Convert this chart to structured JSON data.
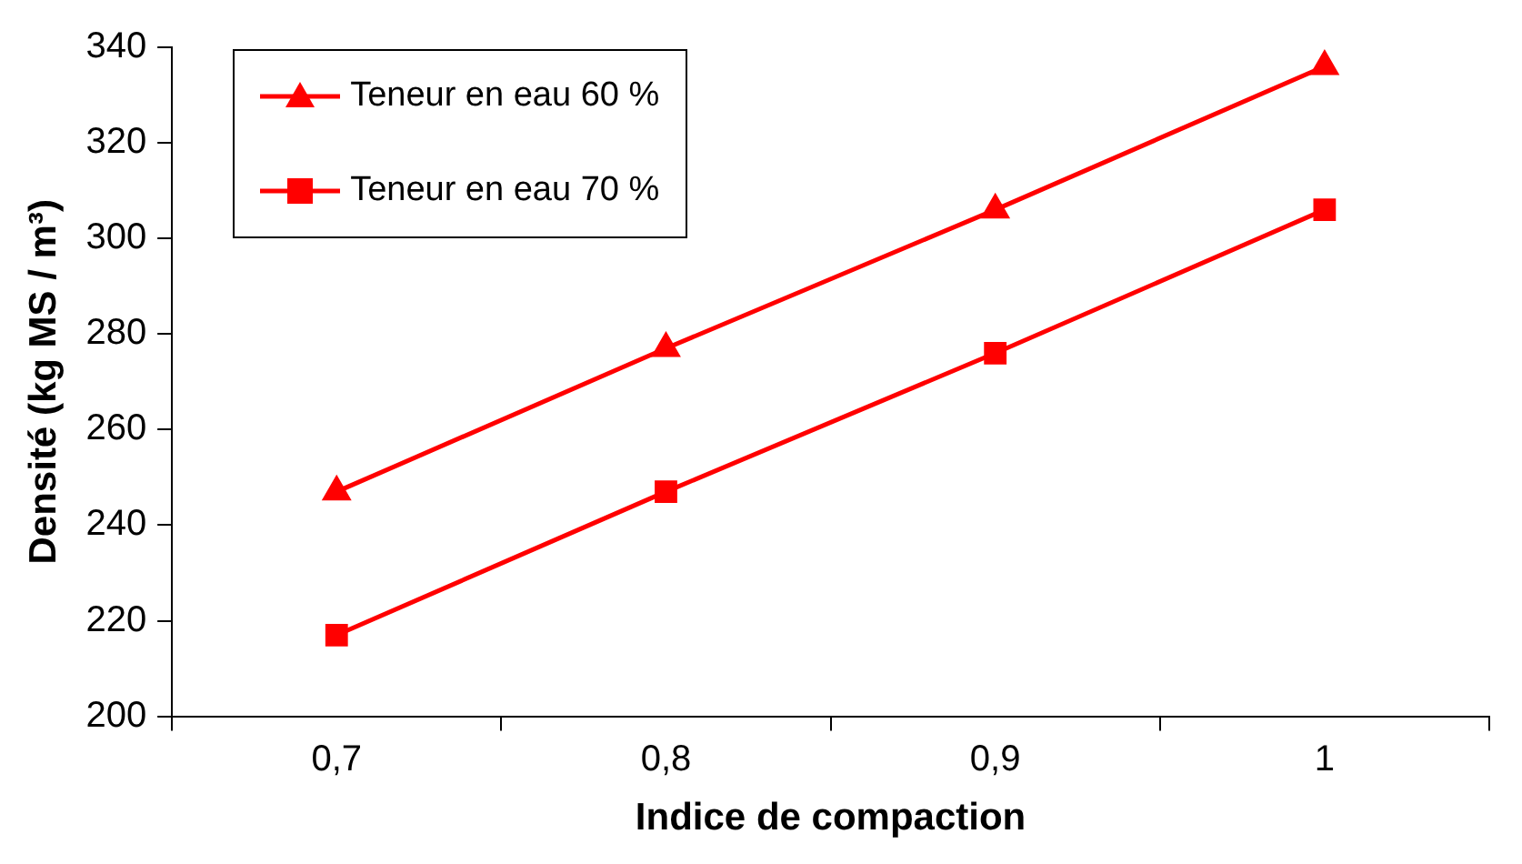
{
  "chart_data": {
    "type": "line",
    "xlabel": "Indice de compaction",
    "ylabel": "Densité (kg MS / m³)",
    "categories": [
      "0,7",
      "0,8",
      "0,9",
      "1"
    ],
    "series": [
      {
        "name": "Teneur en eau 60 %",
        "color": "#ff0000",
        "marker": "triangle",
        "values": [
          247,
          277,
          306,
          336
        ]
      },
      {
        "name": "Teneur en eau 70 %",
        "color": "#ff0000",
        "marker": "square",
        "values": [
          217,
          247,
          276,
          306
        ]
      }
    ],
    "ylim": [
      200,
      340
    ],
    "yticks": [
      200,
      220,
      240,
      260,
      280,
      300,
      320,
      340
    ],
    "grid": false,
    "legend": "top left",
    "line_style": "solid"
  }
}
